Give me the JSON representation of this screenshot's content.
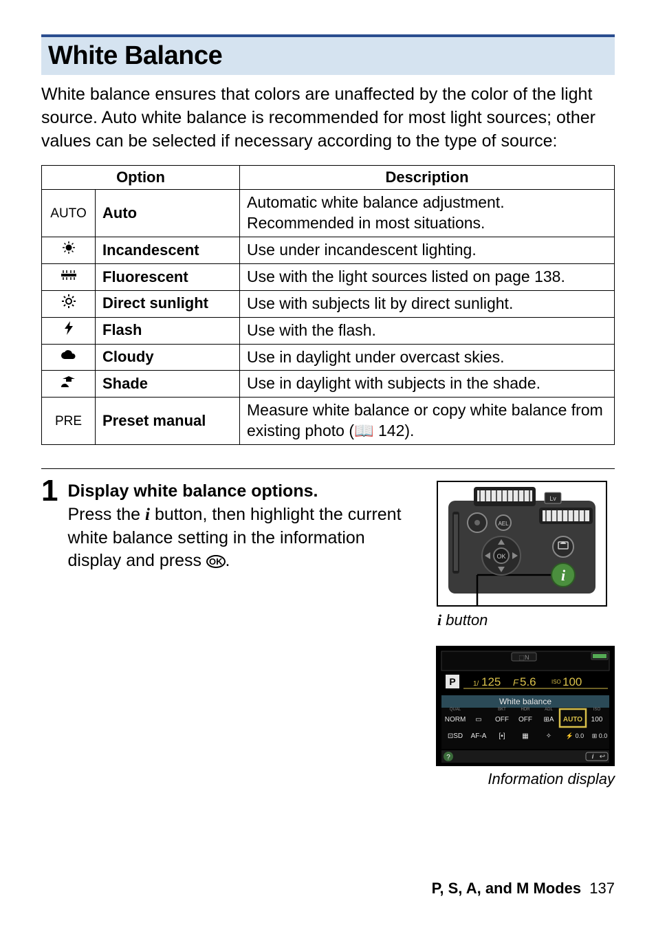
{
  "heading": "White Balance",
  "intro": "White balance ensures that colors are unaffected by the color of the light source.  Auto white balance is recommended for most light sources; other values can be selected if necessary according to the type of source:",
  "table": {
    "head": {
      "option": "Option",
      "description": "Description"
    },
    "rows": [
      {
        "icon": "AUTO",
        "icon_name": "auto-icon",
        "label": "Auto",
        "desc": "Automatic white balance adjustment. Recommended in most situations."
      },
      {
        "icon": "svg:incandescent",
        "icon_name": "incandescent-icon",
        "label": "Incandescent",
        "desc": "Use under incandescent lighting."
      },
      {
        "icon": "svg:fluorescent",
        "icon_name": "fluorescent-icon",
        "label": "Fluorescent",
        "desc": "Use with the light sources listed on page 138."
      },
      {
        "icon": "svg:sunlight",
        "icon_name": "direct-sunlight-icon",
        "label": "Direct sunlight",
        "desc": "Use with subjects lit by direct sunlight."
      },
      {
        "icon": "svg:flash",
        "icon_name": "flash-icon",
        "label": "Flash",
        "desc": "Use with the flash."
      },
      {
        "icon": "svg:cloudy",
        "icon_name": "cloudy-icon",
        "label": "Cloudy",
        "desc": "Use in daylight under overcast skies."
      },
      {
        "icon": "svg:shade",
        "icon_name": "shade-icon",
        "label": "Shade",
        "desc": "Use in daylight with subjects in the shade."
      },
      {
        "icon": "PRE",
        "icon_name": "preset-manual-icon",
        "label": "Preset manual",
        "desc": "Measure white balance or copy white balance from existing photo (📖 142)."
      }
    ]
  },
  "step": {
    "num": "1",
    "title": "Display white balance options.",
    "body_before": "Press the ",
    "body_mid1": " button, then highlight the current white balance setting in the information display and press ",
    "body_after": "."
  },
  "captions": {
    "camera": "𝒊 button",
    "info": "Information display"
  },
  "info_display": {
    "bg": "#000000",
    "accent_yellow": "#d9c04a",
    "accent_cyan": "#6fb8c9",
    "text_white": "#e6e6e6",
    "mode": "P",
    "shutter_pre": "1/",
    "shutter": "125",
    "aperture_pre": "F",
    "aperture": "5.6",
    "iso_pre": "ISO",
    "iso": "100",
    "bar_label": "White balance",
    "row1": [
      "NORM",
      "▭",
      "OFF",
      "OFF",
      "⊞A",
      "AUTO",
      "100"
    ],
    "row2": [
      "⊡SD",
      "AF-A",
      "[▪]",
      "▦",
      "✧",
      "⚡ 0.0",
      "⊞ 0.0"
    ],
    "highlight_index": 5
  },
  "footer": {
    "label": "P, S, A, and M Modes",
    "page": "137"
  },
  "colors": {
    "heading_bg": "#d5e3f0",
    "heading_border": "#2a4d8f",
    "text": "#000000",
    "camera_body": "#3a3a3a",
    "camera_dark": "#1f1f1f",
    "i_button": "#4b8f3e"
  }
}
